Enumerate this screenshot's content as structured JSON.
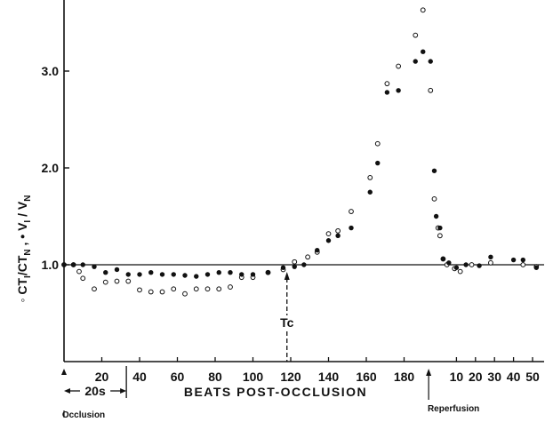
{
  "chart_data": {
    "type": "scatter",
    "title": "",
    "xlabel": "BEATS POST-OCCLUSION",
    "ylabel_parts": [
      "◦ CT",
      "I",
      "/CT",
      "N",
      " ,  • V",
      "I",
      " / V",
      "N"
    ],
    "ylim": [
      0,
      3.6
    ],
    "yticks": [
      1.0,
      2.0,
      3.0
    ],
    "ytick_labels": [
      "1.0",
      "2.0",
      "3.0"
    ],
    "xticks_before_reperfusion": [
      20,
      40,
      60,
      80,
      100,
      120,
      140,
      160,
      180
    ],
    "xticks_after_reperfusion": [
      10,
      20,
      30,
      40,
      50
    ],
    "reperfusion_at_beat": 193,
    "interval_label": "20s",
    "interval_beats": [
      0,
      33
    ],
    "tc_beat": 118,
    "tc_label": "Tc",
    "occlusion_label": "Occlusion",
    "reperfusion_label": "Reperfusion",
    "reference_line": 1.0,
    "grid": false,
    "series": [
      {
        "marker": "open",
        "points_occlusion": [
          [
            0,
            1.0
          ],
          [
            5,
            1.0
          ],
          [
            8,
            0.93
          ],
          [
            10,
            0.86
          ],
          [
            16,
            0.75
          ],
          [
            22,
            0.82
          ],
          [
            28,
            0.83
          ],
          [
            34,
            0.83
          ],
          [
            40,
            0.74
          ],
          [
            46,
            0.72
          ],
          [
            52,
            0.72
          ],
          [
            58,
            0.75
          ],
          [
            64,
            0.7
          ],
          [
            70,
            0.75
          ],
          [
            76,
            0.75
          ],
          [
            82,
            0.75
          ],
          [
            88,
            0.77
          ],
          [
            94,
            0.87
          ],
          [
            100,
            0.87
          ],
          [
            108,
            0.92
          ],
          [
            116,
            0.95
          ],
          [
            122,
            1.03
          ],
          [
            129,
            1.08
          ],
          [
            134,
            1.13
          ],
          [
            140,
            1.32
          ],
          [
            145,
            1.35
          ],
          [
            152,
            1.55
          ],
          [
            162,
            1.9
          ],
          [
            166,
            2.25
          ],
          [
            171,
            2.87
          ],
          [
            177,
            3.05
          ],
          [
            186,
            3.37
          ],
          [
            190,
            3.63
          ],
          [
            194,
            2.8
          ],
          [
            196,
            1.68
          ],
          [
            198,
            1.38
          ],
          [
            199,
            1.3
          ]
        ],
        "points_reperfusion": [
          [
            3,
            1.06
          ],
          [
            5,
            1.0
          ],
          [
            9,
            0.96
          ],
          [
            12,
            0.93
          ],
          [
            18,
            1.0
          ],
          [
            28,
            1.02
          ],
          [
            45,
            1.0
          ],
          [
            52,
            0.98
          ]
        ]
      },
      {
        "marker": "filled",
        "points_occlusion": [
          [
            0,
            1.0
          ],
          [
            5,
            1.0
          ],
          [
            10,
            1.0
          ],
          [
            16,
            0.98
          ],
          [
            22,
            0.92
          ],
          [
            28,
            0.95
          ],
          [
            34,
            0.9
          ],
          [
            40,
            0.9
          ],
          [
            46,
            0.92
          ],
          [
            52,
            0.9
          ],
          [
            58,
            0.9
          ],
          [
            64,
            0.89
          ],
          [
            70,
            0.88
          ],
          [
            76,
            0.9
          ],
          [
            82,
            0.92
          ],
          [
            88,
            0.92
          ],
          [
            94,
            0.9
          ],
          [
            100,
            0.9
          ],
          [
            108,
            0.92
          ],
          [
            116,
            0.97
          ],
          [
            122,
            0.98
          ],
          [
            127,
            1.0
          ],
          [
            134,
            1.15
          ],
          [
            140,
            1.25
          ],
          [
            145,
            1.3
          ],
          [
            152,
            1.38
          ],
          [
            162,
            1.75
          ],
          [
            166,
            2.05
          ],
          [
            171,
            2.78
          ],
          [
            177,
            2.8
          ],
          [
            186,
            3.1
          ],
          [
            190,
            3.2
          ],
          [
            194,
            3.1
          ],
          [
            196,
            1.97
          ],
          [
            197,
            1.5
          ],
          [
            199,
            1.38
          ]
        ],
        "points_reperfusion": [
          [
            3,
            1.06
          ],
          [
            6,
            1.02
          ],
          [
            10,
            0.97
          ],
          [
            15,
            1.0
          ],
          [
            22,
            0.99
          ],
          [
            28,
            1.08
          ],
          [
            40,
            1.05
          ],
          [
            45,
            1.05
          ],
          [
            52,
            0.97
          ]
        ]
      }
    ]
  }
}
